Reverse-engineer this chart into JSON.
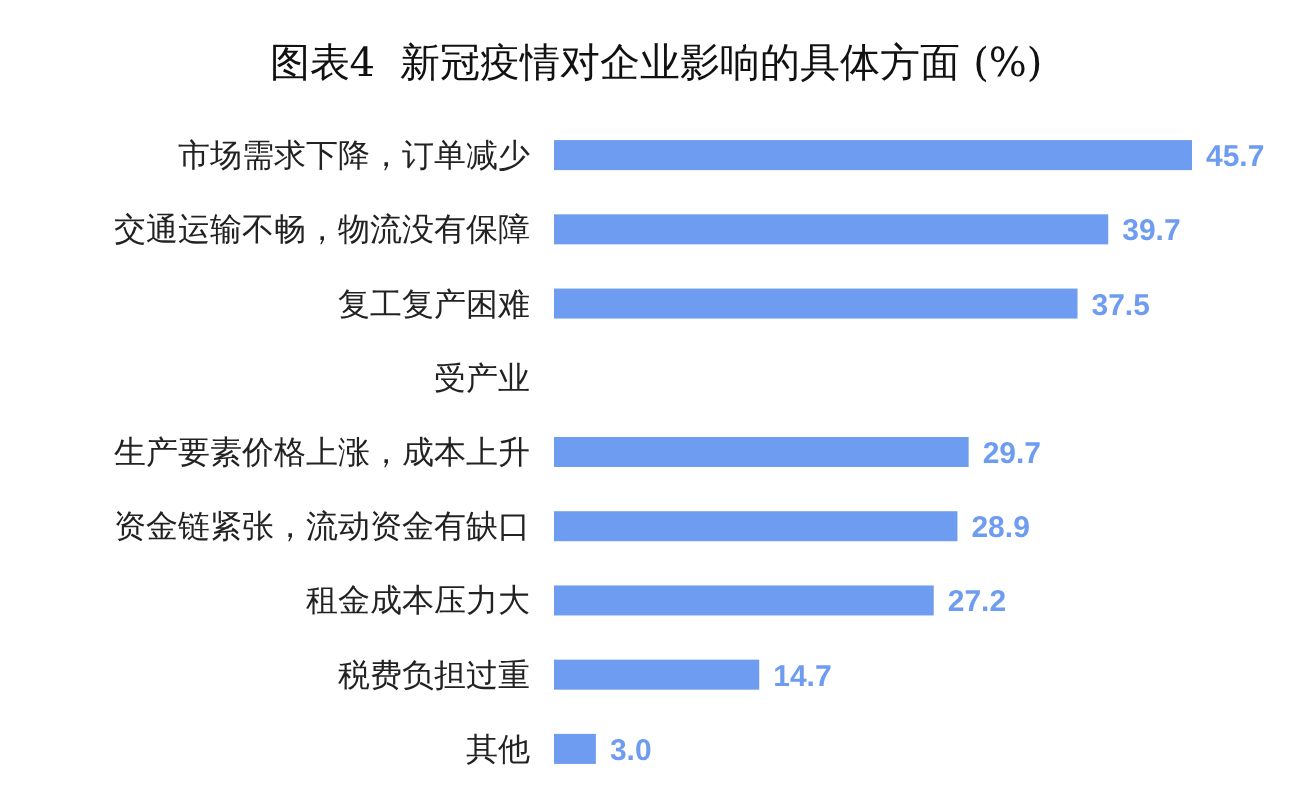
{
  "chart_data": {
    "type": "bar",
    "orientation": "horizontal",
    "title": "图表4  新冠疫情对企业影响的具体方面 (%)",
    "categories": [
      "市场需求下降，订单减少",
      "交通运输不畅，物流没有保障",
      "复工复产困难",
      "受产业",
      "生产要素价格上涨，成本上升",
      "资金链紧张，流动资金有缺口",
      "租金成本压力大",
      "税费负担过重",
      "其他"
    ],
    "values": [
      45.7,
      39.7,
      37.5,
      null,
      29.7,
      28.9,
      27.2,
      14.7,
      3.0
    ],
    "value_labels": [
      "45.7",
      "39.7",
      "37.5",
      null,
      "29.7",
      "28.9",
      "27.2",
      "14.7",
      "3.0"
    ],
    "color": "#6e9cf0"
  }
}
